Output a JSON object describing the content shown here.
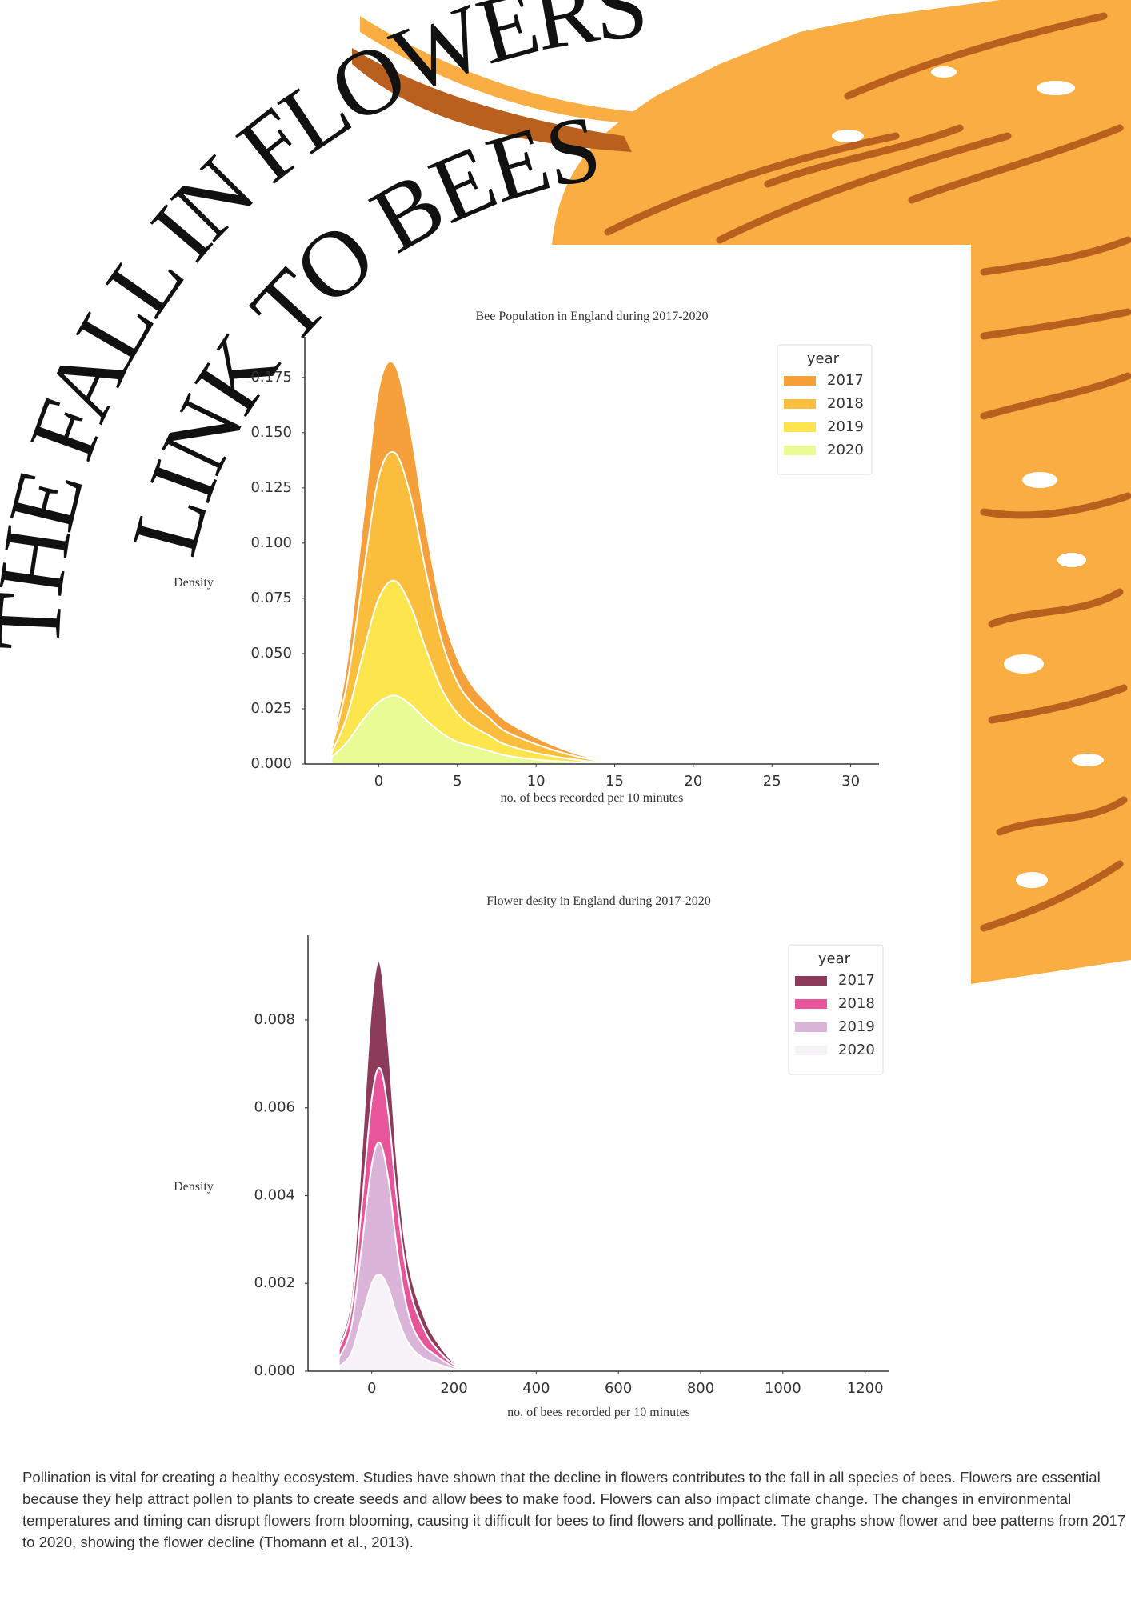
{
  "title_lines": [
    "THE FALL IN FLOWERS",
    "LINK TO BEES?"
  ],
  "chart_data": [
    {
      "type": "kde_stack",
      "title": "Bee Population in England during 2017-2020",
      "x_label": "no. of bees recorded per 10 minutes",
      "y_label": "Density",
      "legend_title": "year",
      "legend": "upper right",
      "x": [
        -3,
        -2,
        -1,
        0,
        1,
        2,
        3,
        4,
        5,
        6,
        7,
        8,
        10,
        12,
        14,
        16,
        20,
        23,
        24,
        26
      ],
      "series": [
        {
          "name": "2017",
          "color": "#f5a03a",
          "values": [
            0.001,
            0.01,
            0.025,
            0.04,
            0.04,
            0.03,
            0.02,
            0.014,
            0.011,
            0.008,
            0.006,
            0.005,
            0.003,
            0.0015,
            0.0005,
            0.0003,
            0,
            0.0005,
            0.0005,
            0
          ]
        },
        {
          "name": "2018",
          "color": "#fbbd3c",
          "values": [
            0.002,
            0.015,
            0.035,
            0.055,
            0.058,
            0.05,
            0.035,
            0.022,
            0.014,
            0.01,
            0.008,
            0.006,
            0.004,
            0.002,
            0.0007,
            0.0002,
            0,
            0,
            0,
            0
          ]
        },
        {
          "name": "2019",
          "color": "#fde54e",
          "values": [
            0.002,
            0.012,
            0.03,
            0.047,
            0.052,
            0.045,
            0.032,
            0.02,
            0.013,
            0.009,
            0.007,
            0.005,
            0.003,
            0.0015,
            0.0005,
            0,
            0,
            0,
            0,
            0
          ]
        },
        {
          "name": "2020",
          "color": "#e8fb95",
          "values": [
            0.003,
            0.01,
            0.02,
            0.028,
            0.031,
            0.027,
            0.02,
            0.014,
            0.01,
            0.008,
            0.006,
            0.004,
            0.002,
            0.001,
            0.0003,
            0,
            0,
            0,
            0,
            0
          ]
        }
      ],
      "xlim": [
        -4.7,
        31.8
      ],
      "xticks": [
        0,
        5,
        10,
        15,
        20,
        25,
        30
      ],
      "ylim": [
        0,
        0.1934
      ],
      "yticks": [
        {
          "value": 0,
          "label": "0.000"
        },
        {
          "value": 0.025,
          "label": "0.025"
        },
        {
          "value": 0.05,
          "label": "0.050"
        },
        {
          "value": 0.075,
          "label": "0.075"
        },
        {
          "value": 0.1,
          "label": "0.100"
        },
        {
          "value": 0.125,
          "label": "0.125"
        },
        {
          "value": 0.15,
          "label": "0.150"
        },
        {
          "value": 0.175,
          "label": "0.175"
        }
      ]
    },
    {
      "type": "kde_stack",
      "title": "Flower desity in England during 2017-2020",
      "x_label": "no. of bees recorded per 10 minutes",
      "y_label": "Density",
      "legend_title": "year",
      "legend": "upper right",
      "x": [
        -80,
        -50,
        -25,
        0,
        20,
        40,
        60,
        80,
        100,
        125,
        150,
        200,
        250,
        300,
        400,
        500,
        550
      ],
      "series": [
        {
          "name": "2017",
          "color": "#8c3b5a",
          "values": [
            0.0001,
            0.0003,
            0.0012,
            0.0022,
            0.0024,
            0.0016,
            0.0009,
            0.0005,
            0.0004,
            0.0003,
            0.0002,
            5e-05,
            2e-05,
            1e-05,
            0,
            1e-05,
            0
          ]
        },
        {
          "name": "2018",
          "color": "#e8559a",
          "values": [
            0.0002,
            0.0004,
            0.0009,
            0.0015,
            0.0017,
            0.0015,
            0.0011,
            0.0008,
            0.0006,
            0.0004,
            0.0002,
            5e-05,
            2e-05,
            1e-05,
            0,
            1e-05,
            0
          ]
        },
        {
          "name": "2019",
          "color": "#dbb5d9",
          "values": [
            0.0002,
            0.0006,
            0.0016,
            0.0027,
            0.003,
            0.0025,
            0.0016,
            0.0009,
            0.0005,
            0.0003,
            0.0002,
            5e-05,
            3e-05,
            2e-05,
            0,
            2e-05,
            0
          ]
        },
        {
          "name": "2020",
          "color": "#f7f2f7",
          "values": [
            0.0001,
            0.0004,
            0.0012,
            0.002,
            0.0022,
            0.0019,
            0.0013,
            0.0008,
            0.0005,
            0.0003,
            0.0002,
            5e-05,
            2e-05,
            0,
            0,
            0,
            0
          ]
        }
      ],
      "xlim": [
        -155,
        1259
      ],
      "xticks": [
        0,
        200,
        400,
        600,
        800,
        1000,
        1200
      ],
      "ylim": [
        0,
        0.00993
      ],
      "yticks": [
        {
          "value": 0,
          "label": "0.000"
        },
        {
          "value": 0.002,
          "label": "0.002"
        },
        {
          "value": 0.004,
          "label": "0.004"
        },
        {
          "value": 0.006,
          "label": "0.006"
        },
        {
          "value": 0.008,
          "label": "0.008"
        }
      ]
    }
  ],
  "paragraph": "Pollination is vital for creating a healthy ecosystem. Studies have shown that the decline in flowers contributes to the fall in all species of bees. Flowers are essential because they help attract pollen to plants to create seeds and allow bees to make food. Flowers can also impact climate change. The changes in environmental temperatures and timing can disrupt flowers from blooming, causing it difficult for bees to find flowers and pollinate. The graphs show flower and bee patterns from 2017 to 2020, showing the flower decline  (Thomann et al., 2013)."
}
